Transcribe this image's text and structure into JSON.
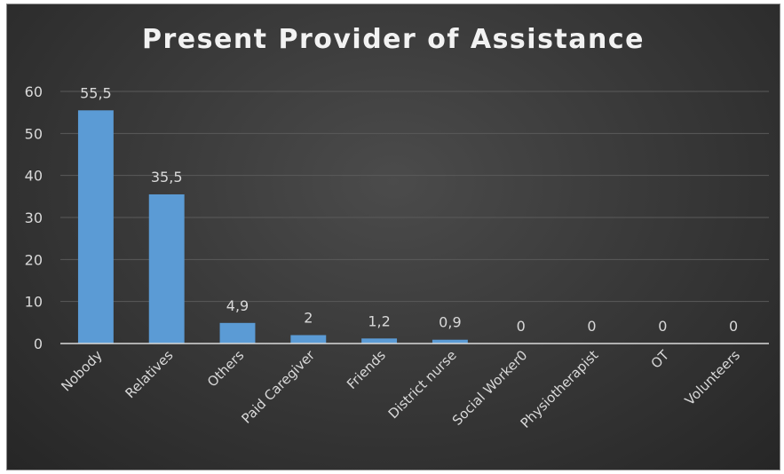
{
  "chart_data": {
    "type": "bar",
    "title": "Present Provider of Assistance",
    "xlabel": "",
    "ylabel": "",
    "categories": [
      "Nobody",
      "Relatives",
      "Others",
      "Paid Caregiver",
      "Friends",
      "District nurse",
      "Social Worker0",
      "Physiotherapist",
      "OT",
      "Volunteers"
    ],
    "values": [
      55.5,
      35.5,
      4.9,
      2,
      1.2,
      0.9,
      0,
      0,
      0,
      0
    ],
    "data_labels": [
      "55,5",
      "35,5",
      "4,9",
      "2",
      "1,2",
      "0,9",
      "0",
      "0",
      "0",
      "0"
    ],
    "ylim": [
      0,
      60
    ],
    "yticks": [
      0,
      10,
      20,
      30,
      40,
      50,
      60
    ],
    "grid": true,
    "legend": "none",
    "colors": {
      "bar": "#5b9bd5",
      "background": "#333333",
      "gridline": "#5a5a5a",
      "axis": "#d9d9d9",
      "text": "#d9d9d9"
    }
  }
}
